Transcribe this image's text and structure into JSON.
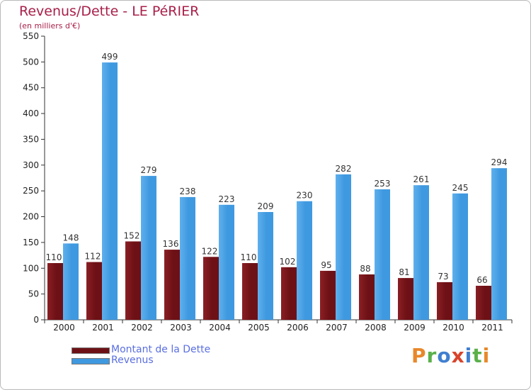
{
  "title": "Revenus/Dette - LE PéRIER",
  "subtitle": "(en milliers d'€)",
  "colors": {
    "debt": "#6e1116",
    "debt_light": "#8a2025",
    "revenue": "#3f99e0",
    "revenue_light": "#5fb0ec",
    "axis": "#333333",
    "grid": "#dddddd",
    "title": "#a8204a",
    "legend_text": "#5a6fe0"
  },
  "legend": {
    "debt_label": "Montant de la Dette",
    "revenue_label": "Revenus"
  },
  "logo": {
    "text": "Proxiti",
    "letter_colors": [
      "#e8882a",
      "#5ab04a",
      "#3f7fd0",
      "#d8442c",
      "#3f7fd0",
      "#5ab04a",
      "#e8882a"
    ]
  },
  "chart_data": {
    "type": "bar",
    "title": "Revenus/Dette - LE PéRIER",
    "subtitle": "(en milliers d'€)",
    "xlabel": "",
    "ylabel": "",
    "ylim": [
      0,
      550
    ],
    "yticks": [
      0,
      50,
      100,
      150,
      200,
      250,
      300,
      350,
      400,
      450,
      500,
      550
    ],
    "categories": [
      "2000",
      "2001",
      "2002",
      "2003",
      "2004",
      "2005",
      "2006",
      "2007",
      "2008",
      "2009",
      "2010",
      "2011"
    ],
    "series": [
      {
        "name": "Montant de la Dette",
        "values": [
          110,
          112,
          152,
          136,
          122,
          110,
          102,
          95,
          88,
          81,
          73,
          66
        ]
      },
      {
        "name": "Revenus",
        "values": [
          148,
          499,
          279,
          238,
          223,
          209,
          230,
          282,
          253,
          261,
          245,
          294
        ]
      }
    ],
    "legend_position": "bottom-left",
    "grid": false
  }
}
